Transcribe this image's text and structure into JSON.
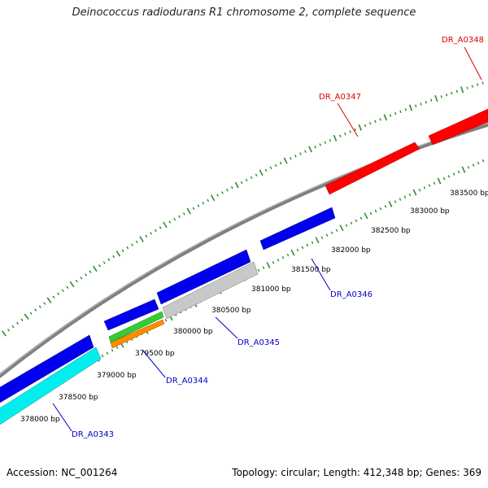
{
  "title": "Deinococcus radiodurans R1 chromosome 2, complete sequence",
  "footer": {
    "accession": "Accession: NC_001264",
    "summary": "Topology: circular; Length: 412,348 bp; Genes: 369"
  },
  "colors": {
    "backbone": "#808080",
    "tick": "#2e8b2e",
    "forward_gene": "#ff0000",
    "reverse_gene": "#0000ee",
    "cyan_gene": "#00eeee",
    "grey_gene": "#c8c8c8",
    "green_gene": "#33cc33",
    "orange_gene": "#ff8c00"
  },
  "bp_labels": [
    "378000 bp",
    "378500 bp",
    "379000 bp",
    "379500 bp",
    "380000 bp",
    "380500 bp",
    "381000 bp",
    "381500 bp",
    "382000 bp",
    "382500 bp",
    "383000 bp",
    "383500 bp"
  ],
  "gene_labels": [
    {
      "name": "DR_A0343",
      "color": "#0000cc"
    },
    {
      "name": "DR_A0344",
      "color": "#0000cc"
    },
    {
      "name": "DR_A0345",
      "color": "#0000cc"
    },
    {
      "name": "DR_A0346",
      "color": "#0000cc"
    },
    {
      "name": "DR_A0347",
      "color": "#dd0000"
    },
    {
      "name": "DR_A0348",
      "color": "#dd0000"
    }
  ]
}
